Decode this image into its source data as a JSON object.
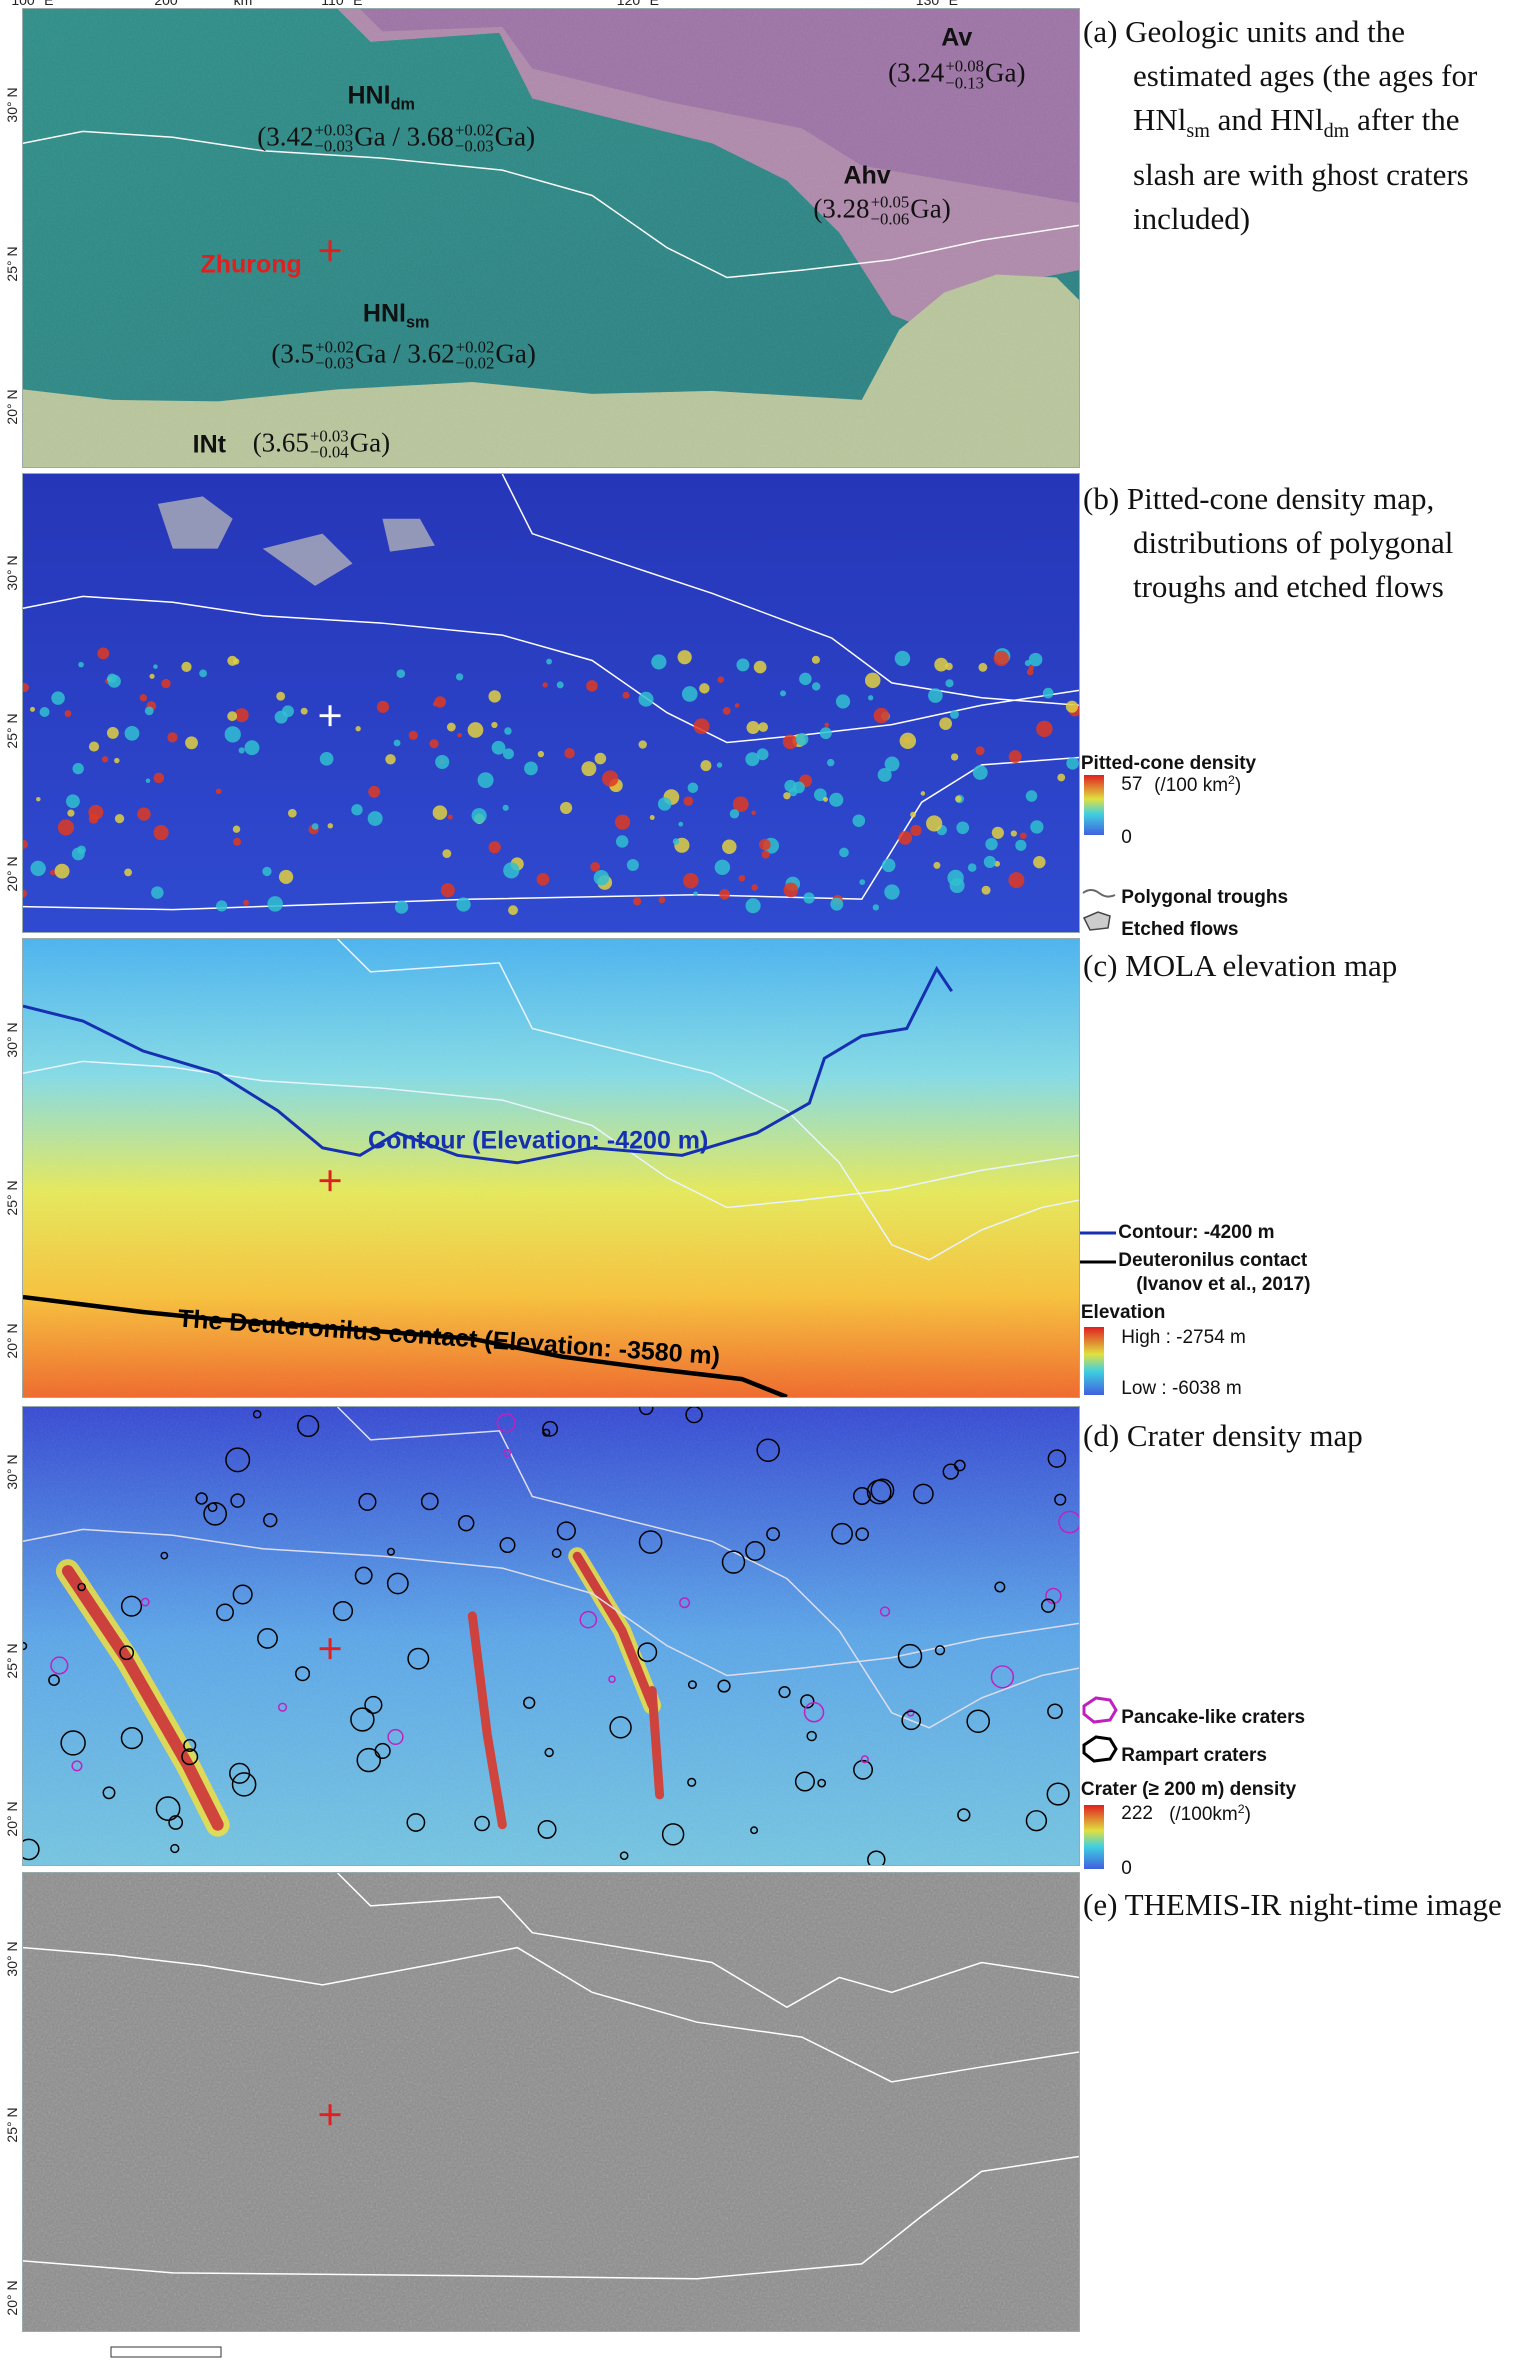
{
  "lat_labels": [
    "30° N",
    "25° N",
    "20° N"
  ],
  "lon_labels": [
    "100° E",
    "110° E",
    "120° E",
    "130° E"
  ],
  "scale_bar": {
    "value": "200",
    "unit": "km"
  },
  "panels": [
    {
      "caption": [
        "(a) Geologic units and the estimated ages (the ages for HNl",
        {
          "sub": "sm"
        },
        " and HNl",
        {
          "sub": "dm"
        },
        " after the slash are with ghost craters included)"
      ],
      "map_labels": [
        [
          "Av"
        ],
        [
          "(3.24",
          {
            "sup": "+0.08",
            "sub": "−0.13"
          },
          "Ga)"
        ],
        [
          "HNl",
          {
            "sub": "dm"
          }
        ],
        [
          "(3.42",
          {
            "sup": "+0.03",
            "sub": "−0.03"
          },
          "Ga / 3.68",
          {
            "sup": "+0.02",
            "sub": "−0.03"
          },
          "Ga)"
        ],
        [
          "Ahv"
        ],
        [
          "(3.28",
          {
            "sup": "+0.05",
            "sub": "−0.06"
          },
          "Ga)"
        ],
        [
          "Zhurong"
        ],
        [
          "HNl",
          {
            "sub": "sm"
          }
        ],
        [
          "(3.5",
          {
            "sup": "+0.02",
            "sub": "−0.03"
          },
          "Ga / 3.62",
          {
            "sup": "+0.02",
            "sub": "−0.02"
          },
          "Ga)"
        ],
        [
          "INt"
        ],
        [
          "(3.65",
          {
            "sup": "+0.03",
            "sub": "−0.04"
          },
          "Ga)"
        ]
      ],
      "legend": []
    },
    {
      "caption": [
        "(b) Pitted-cone density map, distributions of polygonal troughs and etched flows"
      ],
      "map_labels": [],
      "legend": [
        [
          "Pitted-cone density"
        ],
        [
          "57"
        ],
        [
          "(/100 km",
          {
            "sup": "2"
          },
          ")"
        ],
        [
          "0"
        ],
        [
          "Polygonal troughs"
        ],
        [
          "Etched flows"
        ]
      ]
    },
    {
      "caption": [
        "(c) MOLA elevation map"
      ],
      "map_labels": [
        [
          "Contour (Elevation: -4200 m)"
        ],
        [
          "The Deuteronilus contact (Elevation: -3580 m)"
        ]
      ],
      "legend": [
        [
          "Contour: -4200 m"
        ],
        [
          "Deuteronilus contact"
        ],
        [
          "(Ivanov et al., 2017)"
        ],
        [
          "Elevation"
        ],
        [
          "High : -2754 m"
        ],
        [
          "Low : -6038 m"
        ]
      ]
    },
    {
      "caption": [
        "(d) Crater density map"
      ],
      "map_labels": [],
      "legend": [
        [
          "Pancake-like craters"
        ],
        [
          "Rampart craters"
        ],
        [
          "Crater (≥ 200 m) density"
        ],
        [
          "222"
        ],
        [
          "(/100km",
          {
            "sup": "2"
          },
          ")"
        ],
        [
          "0"
        ]
      ]
    },
    {
      "caption": [
        "(e) THEMIS-IR night-time image"
      ],
      "map_labels": [],
      "legend": []
    }
  ]
}
